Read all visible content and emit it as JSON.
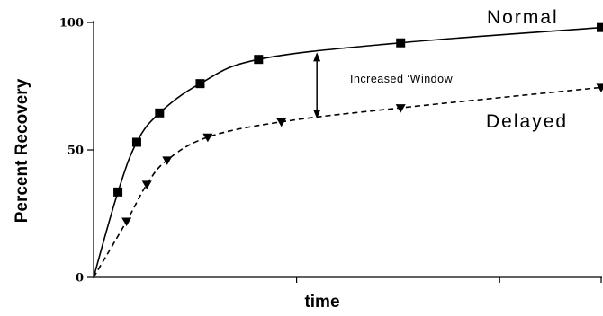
{
  "chart_data": {
    "type": "line",
    "xlabel": "time",
    "ylabel": "Percent Recovery",
    "ylim": [
      0,
      100
    ],
    "xlim": [
      0,
      1
    ],
    "yticks": [
      0,
      50,
      100
    ],
    "yticklabels": [
      "0",
      "50",
      "100"
    ],
    "grid": false,
    "series": [
      {
        "name": "Normal",
        "line_style": "solid",
        "marker": "square",
        "color": "#000000",
        "points": [
          [
            0,
            0
          ],
          [
            0.048,
            33.5
          ],
          [
            0.085,
            53
          ],
          [
            0.13,
            64.5
          ],
          [
            0.21,
            76
          ],
          [
            0.325,
            85.5
          ],
          [
            0.605,
            92
          ],
          [
            1.0,
            98
          ]
        ]
      },
      {
        "name": "Delayed",
        "line_style": "dashed",
        "marker": "triangle-down",
        "color": "#000000",
        "points": [
          [
            0,
            0
          ],
          [
            0.065,
            22
          ],
          [
            0.105,
            36.5
          ],
          [
            0.145,
            46
          ],
          [
            0.225,
            55
          ],
          [
            0.37,
            61
          ],
          [
            0.605,
            66.5
          ],
          [
            1.0,
            74.5
          ]
        ]
      }
    ],
    "annotations": [
      {
        "text": "Increased ‘Window’",
        "type": "double-arrow",
        "x": 0.44,
        "y_from": 86.5,
        "y_to": 64
      }
    ]
  }
}
